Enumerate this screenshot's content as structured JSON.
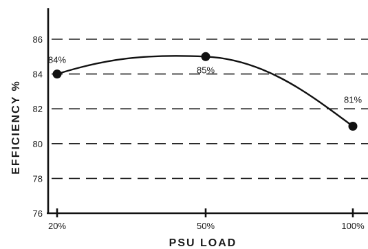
{
  "chart_data": {
    "type": "line",
    "title": "",
    "xlabel": "PSU LOAD",
    "ylabel": "EFFICIENCY %",
    "x_categories": [
      "20%",
      "50%",
      "100%"
    ],
    "x_values": [
      20,
      50,
      100
    ],
    "y_ticks": [
      76,
      78,
      80,
      82,
      84,
      86
    ],
    "ylim": [
      76,
      88
    ],
    "grid": true,
    "series": [
      {
        "values": [
          84,
          85,
          81
        ],
        "point_labels": [
          "84%",
          "85%",
          "81%"
        ]
      }
    ]
  }
}
